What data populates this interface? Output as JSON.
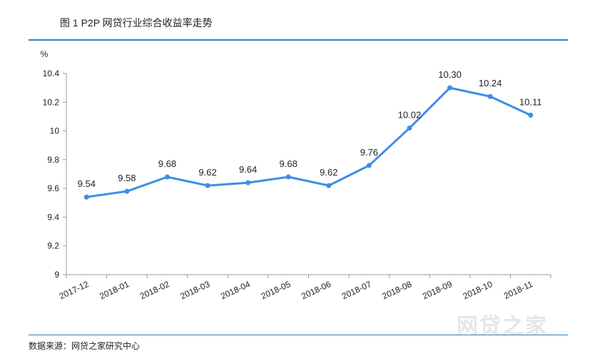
{
  "figure": {
    "title": "图 1    P2P 网贷行业综合收益率走势",
    "source": "数据来源：网贷之家研究中心",
    "watermark": "网贷之家"
  },
  "chart_data": {
    "type": "line",
    "title": "",
    "xlabel": "",
    "ylabel": "%",
    "categories": [
      "2017-12",
      "2018-01",
      "2018-02",
      "2018-03",
      "2018-04",
      "2018-05",
      "2018-06",
      "2018-07",
      "2018-08",
      "2018-09",
      "2018-10",
      "2018-11"
    ],
    "value_labels": [
      "9.54",
      "9.58",
      "9.68",
      "9.62",
      "9.64",
      "9.68",
      "9.62",
      "9.76",
      "10.02",
      "10.30",
      "10.24",
      "10.11"
    ],
    "series": [
      {
        "values": [
          9.54,
          9.58,
          9.68,
          9.62,
          9.64,
          9.68,
          9.62,
          9.76,
          10.02,
          10.3,
          10.24,
          10.11
        ]
      }
    ],
    "ylim": [
      9,
      10.4
    ],
    "yticks": [
      "9",
      "9.2",
      "9.4",
      "9.6",
      "9.8",
      "10",
      "10.2",
      "10.4"
    ],
    "ytick_values": [
      9,
      9.2,
      9.4,
      9.6,
      9.8,
      10,
      10.2,
      10.4
    ],
    "grid": false,
    "line_color": "#3d8ee8"
  }
}
